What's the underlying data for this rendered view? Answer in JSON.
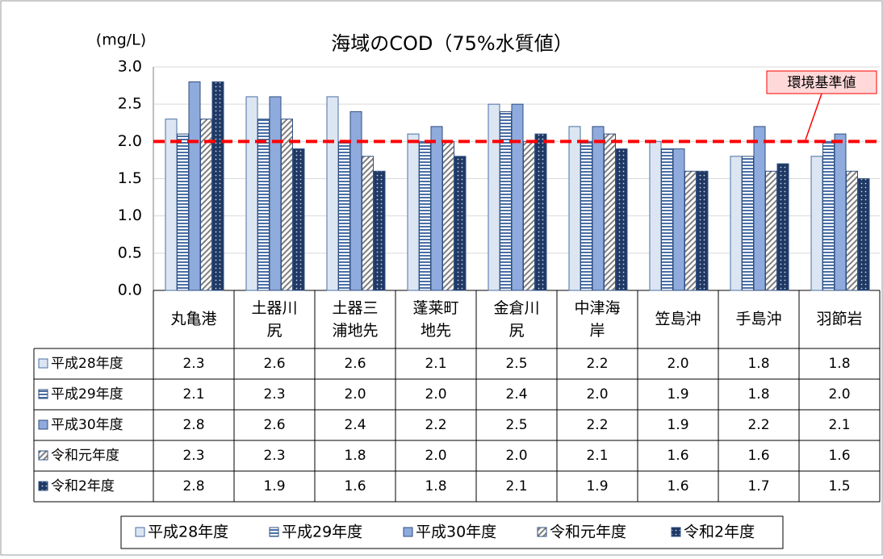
{
  "chart_data": {
    "type": "bar",
    "title": "海域のCOD（75%水質値）",
    "y_unit": "(mg/L)",
    "categories": [
      "丸亀港",
      "土器川尻",
      "土器三浦地先",
      "蓬莱町地先",
      "金倉川尻",
      "中津海岸",
      "笠島沖",
      "手島沖",
      "羽節岩"
    ],
    "series": [
      {
        "name": "平成28年度",
        "color": "#dce6f2",
        "pattern": "none",
        "values": [
          2.3,
          2.6,
          2.6,
          2.1,
          2.5,
          2.2,
          2.0,
          1.8,
          1.8
        ],
        "value_labels": [
          "2.3",
          "2.6",
          "2.6",
          "2.1",
          "2.5",
          "2.2",
          "2.0",
          "1.8",
          "1.8"
        ]
      },
      {
        "name": "平成29年度",
        "color": "#4a6fa5",
        "pattern": "horizontal",
        "values": [
          2.1,
          2.3,
          2.0,
          2.0,
          2.4,
          2.0,
          1.9,
          1.8,
          2.0
        ],
        "value_labels": [
          "2.1",
          "2.3",
          "2.0",
          "2.0",
          "2.4",
          "2.0",
          "1.9",
          "1.8",
          "2.0"
        ]
      },
      {
        "name": "平成30年度",
        "color": "#8faadc",
        "pattern": "solid",
        "values": [
          2.8,
          2.6,
          2.4,
          2.2,
          2.5,
          2.2,
          1.9,
          2.2,
          2.1
        ],
        "value_labels": [
          "2.8",
          "2.6",
          "2.4",
          "2.2",
          "2.5",
          "2.2",
          "1.9",
          "2.2",
          "2.1"
        ]
      },
      {
        "name": "令和元年度",
        "color": "#7f7f7f",
        "pattern": "diagonal",
        "values": [
          2.3,
          2.3,
          1.8,
          2.0,
          2.0,
          2.1,
          1.6,
          1.6,
          1.6
        ],
        "value_labels": [
          "2.3",
          "2.3",
          "1.8",
          "2.0",
          "2.0",
          "2.1",
          "1.6",
          "1.6",
          "1.6"
        ]
      },
      {
        "name": "令和2年度",
        "color": "#1f3864",
        "pattern": "dots",
        "values": [
          2.8,
          1.9,
          1.6,
          1.8,
          2.1,
          1.9,
          1.6,
          1.7,
          1.5
        ],
        "value_labels": [
          "2.8",
          "1.9",
          "1.6",
          "1.8",
          "2.1",
          "1.9",
          "1.6",
          "1.7",
          "1.5"
        ]
      }
    ],
    "ylim": [
      0,
      3
    ],
    "yticks": [
      {
        "value": 0,
        "label": "0.0"
      },
      {
        "value": 0.5,
        "label": "0.5"
      },
      {
        "value": 1,
        "label": "1.0"
      },
      {
        "value": 1.5,
        "label": "1.5"
      },
      {
        "value": 2,
        "label": "2.0"
      },
      {
        "value": 2.5,
        "label": "2.5"
      },
      {
        "value": 3,
        "label": "3.0"
      }
    ],
    "grid": true,
    "reference_line": {
      "value": 2,
      "label": "環境基準値",
      "color": "#ff0000"
    },
    "legend": "bottom"
  }
}
